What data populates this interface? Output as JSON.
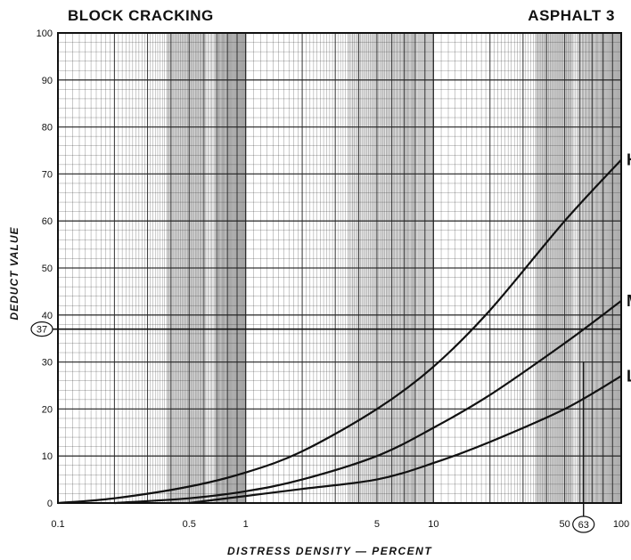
{
  "chart_data": {
    "type": "line",
    "title": "BLOCK CRACKING",
    "subtitle": "ASPHALT 3",
    "xlabel": "DISTRESS DENSITY — PERCENT",
    "ylabel": "DEDUCT VALUE",
    "x_scale": "log",
    "xlim": [
      0.1,
      100
    ],
    "ylim": [
      0,
      100
    ],
    "grid": true,
    "x_tick_labels": [
      "0.1",
      "0.5",
      "1",
      "5",
      "10",
      "50",
      "100"
    ],
    "x_ticks": [
      0.1,
      0.5,
      1,
      5,
      10,
      50,
      100
    ],
    "y_ticks": [
      0,
      10,
      20,
      30,
      40,
      50,
      60,
      70,
      80,
      90,
      100
    ],
    "series": [
      {
        "name": "H",
        "x": [
          0.1,
          0.2,
          0.5,
          1,
          2,
          5,
          10,
          20,
          50,
          100
        ],
        "y": [
          0,
          1,
          3.5,
          6.5,
          11,
          20,
          29,
          41,
          60,
          73
        ]
      },
      {
        "name": "M",
        "x": [
          0.2,
          0.5,
          1,
          2,
          5,
          10,
          20,
          50,
          100
        ],
        "y": [
          0,
          1,
          2.5,
          5,
          10,
          16,
          23,
          34,
          43
        ]
      },
      {
        "name": "L",
        "x": [
          0.5,
          1,
          2,
          5,
          10,
          20,
          50,
          100
        ],
        "y": [
          0,
          1.5,
          3,
          5,
          8.5,
          13,
          20,
          27
        ]
      }
    ],
    "annotations": [
      {
        "text": "37",
        "axis": "y",
        "value": 37,
        "circled": true
      },
      {
        "text": "63",
        "axis": "x",
        "value": 63,
        "circled": true
      }
    ]
  }
}
